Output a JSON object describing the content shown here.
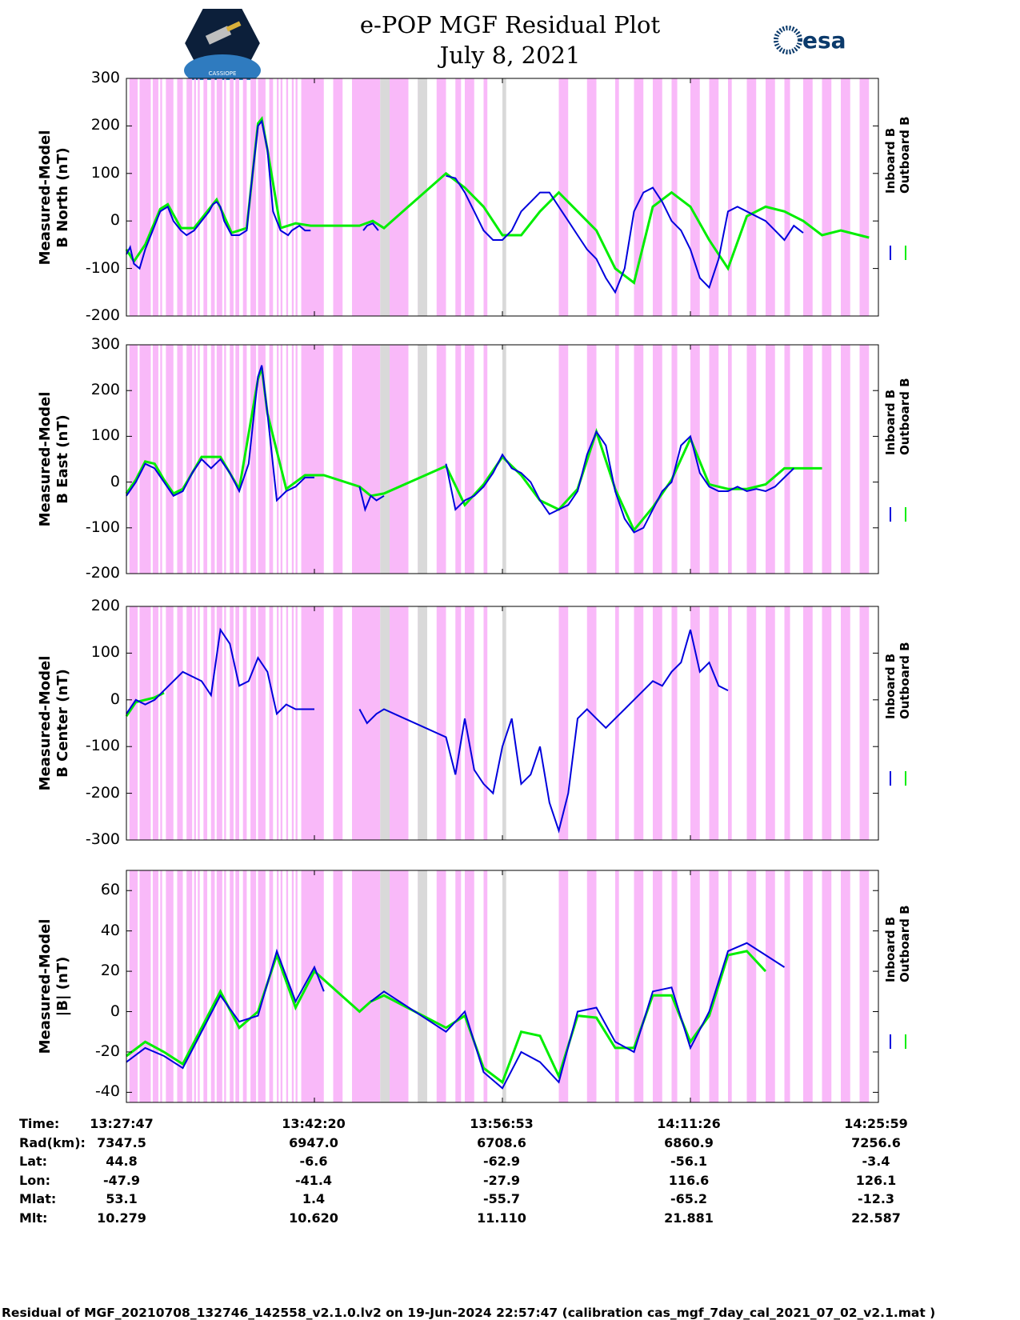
{
  "header": {
    "title_line1": "e-POP MGF Residual Plot",
    "title_line2": "July 8, 2021",
    "logo_left_text": "CASSIOPE",
    "logo_right_text": "esa"
  },
  "colors": {
    "inboard": "#0000dd",
    "outboard": "#00ee00",
    "shade_pink": "#f9b9f9",
    "shade_gray": "#d9d9d9"
  },
  "legend": {
    "inboard": "Inboard B",
    "outboard": "Outboard B"
  },
  "chart_data": [
    {
      "type": "line",
      "ylabel": [
        "Measured-Model",
        "B North (nT)"
      ],
      "ylim": [
        -200,
        300
      ],
      "yticks": [
        300,
        200,
        100,
        0,
        -100,
        -200
      ],
      "series": [
        {
          "name": "Inboard B",
          "x": [
            0,
            0.02,
            0.04,
            0.07,
            0.1,
            0.14,
            0.18,
            0.2,
            0.22,
            0.25,
            0.29,
            0.32,
            0.36,
            0.4,
            0.44,
            0.46,
            0.48,
            0.5,
            0.52,
            0.56,
            0.6,
            0.64,
            0.66,
            0.7,
            0.72,
            0.75,
            0.78,
            0.82,
            0.86,
            0.88,
            0.9,
            0.92,
            0.95,
            0.98,
            1.01,
            1.05,
            1.09,
            1.13,
            1.17,
            1.21,
            1.24,
            1.26,
            1.28,
            1.31,
            1.34,
            1.37,
            1.41,
            1.45,
            1.5,
            1.55,
            1.6,
            1.65,
            1.7,
            1.75,
            1.8,
            1.85,
            1.9,
            1.95,
            2.0,
            2.05,
            2.1,
            2.15,
            2.2,
            2.25,
            2.3,
            2.35,
            2.4,
            2.45,
            2.5,
            2.55,
            2.6,
            2.65,
            2.7,
            2.75,
            2.8,
            2.85,
            2.9,
            2.95,
            3.0,
            3.05,
            3.1,
            3.15,
            3.2,
            3.25,
            3.3,
            3.35,
            3.4,
            3.45,
            3.5,
            3.55,
            3.6,
            3.65,
            3.7,
            3.75,
            3.8,
            3.85,
            3.9,
            3.95,
            4.0
          ],
          "values": [
            -70,
            -55,
            -90,
            -100,
            -60,
            -20,
            20,
            25,
            30,
            0,
            -20,
            -30,
            -20,
            0,
            20,
            35,
            40,
            30,
            0,
            -30,
            -30,
            -20,
            60,
            200,
            210,
            150,
            20,
            -20,
            -30,
            -20,
            -15,
            -10,
            -20,
            -20,
            null,
            null,
            null,
            null,
            null,
            null,
            null,
            -20,
            -10,
            -5,
            -20,
            null,
            null,
            null,
            null,
            null,
            null,
            null,
            95,
            90,
            60,
            20,
            -20,
            -40,
            -40,
            -20,
            20,
            40,
            60,
            60,
            30,
            0,
            -30,
            -60,
            -80,
            -120,
            -150,
            -100,
            20,
            60,
            70,
            40,
            0,
            -20,
            -60,
            -120,
            -140,
            -80,
            20,
            30,
            20,
            10,
            0,
            -20,
            -40,
            -10,
            -25,
            null,
            null,
            null,
            null,
            null,
            null,
            null,
            null
          ],
          "color": "inboard"
        },
        {
          "name": "Outboard B",
          "x": [
            0,
            0.04,
            0.1,
            0.18,
            0.22,
            0.29,
            0.36,
            0.44,
            0.48,
            0.56,
            0.64,
            0.7,
            0.72,
            0.75,
            0.82,
            0.9,
            0.98,
            1.24,
            1.31,
            1.37,
            1.7,
            1.8,
            1.9,
            2.0,
            2.1,
            2.2,
            2.3,
            2.4,
            2.5,
            2.6,
            2.7,
            2.8,
            2.9,
            3.0,
            3.1,
            3.2,
            3.3,
            3.4,
            3.5,
            3.6,
            3.7,
            3.8,
            3.9,
            3.95
          ],
          "values": [
            -60,
            -85,
            -50,
            25,
            35,
            -15,
            -15,
            25,
            45,
            -25,
            -15,
            205,
            215,
            150,
            -15,
            -5,
            -10,
            -10,
            0,
            -15,
            100,
            70,
            30,
            -30,
            -30,
            20,
            60,
            20,
            -20,
            -100,
            -130,
            30,
            60,
            30,
            -40,
            -100,
            10,
            30,
            20,
            0,
            -30,
            -20,
            -30,
            -35
          ],
          "color": "outboard"
        }
      ]
    },
    {
      "type": "line",
      "ylabel": [
        "Measured-Model",
        "B East (nT)"
      ],
      "ylim": [
        -200,
        300
      ],
      "yticks": [
        300,
        200,
        100,
        0,
        -100,
        -200
      ],
      "series": [
        {
          "name": "Inboard B",
          "x": [
            0,
            0.05,
            0.1,
            0.15,
            0.2,
            0.25,
            0.3,
            0.35,
            0.4,
            0.45,
            0.5,
            0.55,
            0.6,
            0.65,
            0.7,
            0.72,
            0.75,
            0.8,
            0.85,
            0.9,
            0.95,
            1.0,
            1.05,
            1.24,
            1.27,
            1.3,
            1.33,
            1.37,
            1.5,
            1.6,
            1.7,
            1.75,
            1.8,
            1.85,
            1.9,
            1.95,
            2.0,
            2.05,
            2.1,
            2.15,
            2.2,
            2.25,
            2.3,
            2.35,
            2.4,
            2.45,
            2.5,
            2.55,
            2.6,
            2.65,
            2.7,
            2.75,
            2.8,
            2.85,
            2.9,
            2.95,
            3.0,
            3.05,
            3.1,
            3.15,
            3.2,
            3.25,
            3.3,
            3.35,
            3.4,
            3.45,
            3.5,
            3.55,
            3.6,
            3.65,
            3.7,
            3.75,
            3.8,
            3.85,
            3.9,
            3.95,
            4.0
          ],
          "values": [
            -30,
            0,
            40,
            30,
            0,
            -30,
            -20,
            20,
            50,
            30,
            50,
            20,
            -20,
            40,
            230,
            255,
            150,
            -40,
            -20,
            -10,
            10,
            10,
            null,
            -10,
            -60,
            -30,
            -40,
            -30,
            null,
            null,
            40,
            -60,
            -40,
            -30,
            -10,
            20,
            60,
            30,
            20,
            0,
            -40,
            -70,
            -60,
            -50,
            -20,
            60,
            110,
            80,
            -20,
            -80,
            -110,
            -100,
            -60,
            -20,
            0,
            80,
            100,
            20,
            -10,
            -20,
            -20,
            -10,
            -20,
            -15,
            -20,
            -10,
            10,
            30,
            null,
            null,
            null,
            null,
            null,
            null,
            null,
            null,
            null
          ],
          "color": "inboard"
        },
        {
          "name": "Outboard B",
          "x": [
            0,
            0.05,
            0.1,
            0.15,
            0.2,
            0.25,
            0.3,
            0.4,
            0.5,
            0.6,
            0.7,
            0.72,
            0.75,
            0.85,
            0.95,
            1.05,
            1.24,
            1.3,
            1.37,
            1.7,
            1.8,
            1.9,
            2.0,
            2.1,
            2.2,
            2.3,
            2.4,
            2.5,
            2.6,
            2.7,
            2.8,
            2.9,
            3.0,
            3.1,
            3.2,
            3.3,
            3.4,
            3.5,
            3.6,
            3.7
          ],
          "values": [
            -25,
            5,
            45,
            40,
            5,
            -25,
            -15,
            55,
            55,
            -15,
            225,
            250,
            150,
            -15,
            15,
            15,
            -10,
            -30,
            -25,
            35,
            -50,
            -5,
            55,
            15,
            -40,
            -60,
            -15,
            110,
            -15,
            -105,
            -55,
            5,
            95,
            -5,
            -15,
            -15,
            -5,
            30,
            30,
            30
          ],
          "color": "outboard"
        }
      ]
    },
    {
      "type": "line",
      "ylabel": [
        "Measured-Model",
        "B Center (nT)"
      ],
      "ylim": [
        -300,
        200
      ],
      "yticks": [
        200,
        100,
        0,
        -100,
        -200,
        -300
      ],
      "series": [
        {
          "name": "Inboard B",
          "x": [
            0,
            0.05,
            0.1,
            0.15,
            0.2,
            0.3,
            0.4,
            0.45,
            0.5,
            0.55,
            0.6,
            0.65,
            0.7,
            0.75,
            0.8,
            0.85,
            0.9,
            0.95,
            1.0,
            1.05,
            1.24,
            1.28,
            1.33,
            1.37,
            1.7,
            1.75,
            1.8,
            1.85,
            1.9,
            1.95,
            2.0,
            2.05,
            2.1,
            2.15,
            2.2,
            2.25,
            2.3,
            2.35,
            2.4,
            2.45,
            2.5,
            2.55,
            2.6,
            2.65,
            2.7,
            2.75,
            2.8,
            2.85,
            2.9,
            2.95,
            3.0,
            3.05,
            3.1,
            3.15,
            3.2,
            3.25,
            3.3,
            3.35,
            3.4,
            3.45,
            3.5,
            3.55,
            3.6,
            3.65,
            3.7,
            3.75,
            3.8,
            3.85,
            3.9,
            3.95,
            4.0
          ],
          "values": [
            -30,
            0,
            -10,
            0,
            20,
            60,
            40,
            10,
            150,
            120,
            30,
            40,
            90,
            60,
            -30,
            -10,
            -20,
            -20,
            -20,
            null,
            -20,
            -50,
            -30,
            -20,
            -80,
            -160,
            -40,
            -150,
            -180,
            -200,
            -100,
            -40,
            -180,
            -160,
            -100,
            -220,
            -280,
            -200,
            -40,
            -20,
            -40,
            -60,
            -40,
            -20,
            0,
            20,
            40,
            30,
            60,
            80,
            150,
            60,
            80,
            30,
            20,
            null,
            null,
            null,
            null,
            null,
            null,
            null,
            null,
            null,
            null,
            null,
            null,
            null,
            null,
            null,
            null
          ],
          "color": "inboard"
        },
        {
          "name": "Outboard B",
          "x": [
            0,
            0.05,
            0.1,
            0.15,
            0.2
          ],
          "values": [
            -35,
            -5,
            0,
            5,
            15
          ],
          "color": "outboard"
        }
      ]
    },
    {
      "type": "line",
      "ylabel": [
        "Measured-Model",
        "|B| (nT)"
      ],
      "ylim": [
        -45,
        70
      ],
      "yticks": [
        60,
        40,
        20,
        0,
        -20,
        -40
      ],
      "series": [
        {
          "name": "Inboard B",
          "x": [
            0,
            0.1,
            0.2,
            0.3,
            0.4,
            0.5,
            0.6,
            0.7,
            0.8,
            0.9,
            1.0,
            1.05,
            1.24,
            1.3,
            1.37,
            1.7,
            1.8,
            1.9,
            2.0,
            2.1,
            2.2,
            2.3,
            2.4,
            2.5,
            2.6,
            2.7,
            2.8,
            2.9,
            3.0,
            3.1,
            3.2,
            3.3,
            3.4,
            3.5,
            3.6,
            3.7,
            3.8,
            3.9,
            4.0
          ],
          "values": [
            -25,
            -18,
            -22,
            -28,
            -10,
            8,
            -5,
            -2,
            30,
            5,
            22,
            10,
            null,
            5,
            10,
            -10,
            0,
            -30,
            -38,
            -20,
            -25,
            -35,
            0,
            2,
            -15,
            -20,
            10,
            12,
            -18,
            0,
            30,
            34,
            28,
            22,
            null,
            null,
            null,
            null,
            null
          ],
          "color": "inboard"
        },
        {
          "name": "Outboard B",
          "x": [
            0,
            0.1,
            0.2,
            0.3,
            0.4,
            0.5,
            0.6,
            0.7,
            0.8,
            0.9,
            1.0,
            1.24,
            1.3,
            1.37,
            1.7,
            1.8,
            1.9,
            2.0,
            2.1,
            2.2,
            2.3,
            2.4,
            2.5,
            2.6,
            2.7,
            2.8,
            2.9,
            3.0,
            3.1,
            3.2,
            3.3,
            3.4
          ],
          "values": [
            -22,
            -15,
            -20,
            -26,
            -8,
            10,
            -8,
            0,
            28,
            2,
            20,
            0,
            5,
            8,
            -8,
            -2,
            -28,
            -35,
            -10,
            -12,
            -32,
            -2,
            -3,
            -18,
            -18,
            8,
            8,
            -15,
            -2,
            28,
            30,
            20
          ],
          "color": "outboard"
        }
      ]
    }
  ],
  "shading": {
    "pink": [
      [
        0.016,
        0.06
      ],
      [
        0.07,
        0.13
      ],
      [
        0.14,
        0.17
      ],
      [
        0.18,
        0.19
      ],
      [
        0.21,
        0.25
      ],
      [
        0.27,
        0.3
      ],
      [
        0.32,
        0.35
      ],
      [
        0.36,
        0.37
      ],
      [
        0.38,
        0.39
      ],
      [
        0.41,
        0.43
      ],
      [
        0.45,
        0.47
      ],
      [
        0.48,
        0.51
      ],
      [
        0.52,
        0.53
      ],
      [
        0.55,
        0.57
      ],
      [
        0.58,
        0.6
      ],
      [
        0.62,
        0.64
      ],
      [
        0.66,
        0.69
      ],
      [
        0.7,
        0.74
      ],
      [
        0.76,
        0.78
      ],
      [
        0.8,
        0.81
      ],
      [
        0.82,
        0.83
      ],
      [
        0.85,
        0.86
      ],
      [
        0.88,
        0.89
      ],
      [
        0.9,
        0.91
      ],
      [
        0.93,
        1.05
      ],
      [
        1.1,
        1.15
      ],
      [
        1.2,
        1.35
      ],
      [
        1.4,
        1.5
      ],
      [
        1.55,
        1.6
      ],
      [
        1.65,
        1.7
      ],
      [
        1.75,
        1.78
      ],
      [
        1.8,
        1.85
      ],
      [
        1.9,
        1.92
      ],
      [
        2.3,
        2.35
      ],
      [
        2.45,
        2.5
      ],
      [
        2.6,
        2.62
      ],
      [
        2.7,
        2.75
      ],
      [
        2.8,
        2.85
      ],
      [
        2.9,
        2.93
      ],
      [
        3.0,
        3.05
      ],
      [
        3.1,
        3.15
      ],
      [
        3.2,
        3.22
      ],
      [
        3.3,
        3.35
      ],
      [
        3.4,
        3.45
      ],
      [
        3.5,
        3.53
      ],
      [
        3.6,
        3.65
      ],
      [
        3.7,
        3.75
      ],
      [
        3.8,
        3.85
      ],
      [
        3.9,
        3.95
      ]
    ],
    "gray": [
      [
        1.35,
        1.4
      ],
      [
        1.55,
        1.6
      ],
      [
        2.0,
        2.02
      ]
    ]
  },
  "info_table": {
    "labels": [
      "Time:",
      "Rad(km):",
      "Lat:",
      "Lon:",
      "Mlat:",
      "Mlt:"
    ],
    "columns": [
      [
        "13:27:47",
        "7347.5",
        "44.8",
        "-47.9",
        "53.1",
        "10.279"
      ],
      [
        "13:42:20",
        "6947.0",
        "-6.6",
        "-41.4",
        "1.4",
        "10.620"
      ],
      [
        "13:56:53",
        "6708.6",
        "-62.9",
        "-27.9",
        "-55.7",
        "11.110"
      ],
      [
        "14:11:26",
        "6860.9",
        "-56.1",
        "116.6",
        "-65.2",
        "21.881"
      ],
      [
        "14:25:59",
        "7256.6",
        "-3.4",
        "126.1",
        "-12.3",
        "22.587"
      ]
    ]
  },
  "footer": "Residual of MGF_20210708_132746_142558_v2.1.0.lv2 on 19-Jun-2024 22:57:47 (calibration cas_mgf_7day_cal_2021_07_02_v2.1.mat )"
}
